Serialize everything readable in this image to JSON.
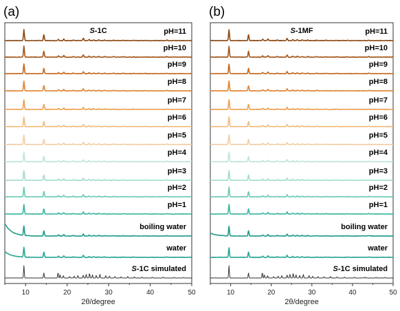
{
  "chart_data": [
    {
      "type": "line",
      "panel": "(a)",
      "title_prefix": "S",
      "title_rest": "-1C",
      "xlabel": "2θ/degree",
      "ylabel": "",
      "xlim": [
        5,
        50
      ],
      "xticks": [
        10,
        20,
        30,
        40,
        50
      ],
      "series": [
        {
          "name": "pH=11",
          "color": "#8c4a14",
          "label_prefix": "",
          "label_rest": "pH=11"
        },
        {
          "name": "pH=10",
          "color": "#a3561a",
          "label_prefix": "",
          "label_rest": "pH=10"
        },
        {
          "name": "pH=9",
          "color": "#c4681f",
          "label_prefix": "",
          "label_rest": "pH=9"
        },
        {
          "name": "pH=8",
          "color": "#df8432",
          "label_prefix": "",
          "label_rest": "pH=8"
        },
        {
          "name": "pH=7",
          "color": "#eea050",
          "label_prefix": "",
          "label_rest": "pH=7"
        },
        {
          "name": "pH=6",
          "color": "#f2bb7e",
          "label_prefix": "",
          "label_rest": "pH=6"
        },
        {
          "name": "pH=5",
          "color": "#f4cda5",
          "label_prefix": "",
          "label_rest": "pH=5"
        },
        {
          "name": "pH=4",
          "color": "#bfe4dc",
          "label_prefix": "",
          "label_rest": "pH=4"
        },
        {
          "name": "pH=3",
          "color": "#a3dbce",
          "label_prefix": "",
          "label_rest": "pH=3"
        },
        {
          "name": "pH=2",
          "color": "#6cc9b7",
          "label_prefix": "",
          "label_rest": "pH=2"
        },
        {
          "name": "pH=1",
          "color": "#3db6a2",
          "label_prefix": "",
          "label_rest": "pH=1"
        },
        {
          "name": "boiling water",
          "color": "#1f9c89",
          "label_prefix": "",
          "label_rest": "boiling water"
        },
        {
          "name": "water",
          "color": "#2aa693",
          "label_prefix": "",
          "label_rest": "water"
        },
        {
          "name": "S-1C simulated",
          "color": "#333333",
          "label_prefix": "S",
          "label_rest": "-1C simulated"
        }
      ]
    },
    {
      "type": "line",
      "panel": "(b)",
      "title_prefix": "S",
      "title_rest": "-1MF",
      "xlabel": "2θ/degree",
      "ylabel": "",
      "xlim": [
        5,
        50
      ],
      "xticks": [
        10,
        20,
        30,
        40,
        50
      ],
      "series": [
        {
          "name": "pH=11",
          "color": "#8c4a14",
          "label_prefix": "",
          "label_rest": "pH=11"
        },
        {
          "name": "pH=10",
          "color": "#a3561a",
          "label_prefix": "",
          "label_rest": "pH=10"
        },
        {
          "name": "pH=9",
          "color": "#c4681f",
          "label_prefix": "",
          "label_rest": "pH=9"
        },
        {
          "name": "pH=8",
          "color": "#df8432",
          "label_prefix": "",
          "label_rest": "pH=8"
        },
        {
          "name": "pH=7",
          "color": "#eea050",
          "label_prefix": "",
          "label_rest": "pH=7"
        },
        {
          "name": "pH=6",
          "color": "#f2bb7e",
          "label_prefix": "",
          "label_rest": "pH=6"
        },
        {
          "name": "pH=5",
          "color": "#f4cda5",
          "label_prefix": "",
          "label_rest": "pH=5"
        },
        {
          "name": "pH=4",
          "color": "#bfe4dc",
          "label_prefix": "",
          "label_rest": "pH=4"
        },
        {
          "name": "pH=3",
          "color": "#a3dbce",
          "label_prefix": "",
          "label_rest": "pH=3"
        },
        {
          "name": "pH=2",
          "color": "#6cc9b7",
          "label_prefix": "",
          "label_rest": "pH=2"
        },
        {
          "name": "pH=1",
          "color": "#3db6a2",
          "label_prefix": "",
          "label_rest": "pH=1"
        },
        {
          "name": "boiling water",
          "color": "#1f9c89",
          "label_prefix": "",
          "label_rest": "boiling water"
        },
        {
          "name": "water",
          "color": "#2aa693",
          "label_prefix": "",
          "label_rest": "water"
        },
        {
          "name": "S-1C simulated",
          "color": "#333333",
          "label_prefix": "S",
          "label_rest": "-1C simulated"
        }
      ]
    }
  ],
  "peaks": [
    {
      "pos": 9.6,
      "h": 1.0
    },
    {
      "pos": 14.4,
      "h": 0.55
    },
    {
      "pos": 17.9,
      "h": 0.12
    },
    {
      "pos": 19.2,
      "h": 0.16
    },
    {
      "pos": 21.5,
      "h": 0.07
    },
    {
      "pos": 23.9,
      "h": 0.22
    },
    {
      "pos": 25.3,
      "h": 0.1
    },
    {
      "pos": 26.4,
      "h": 0.08
    },
    {
      "pos": 27.6,
      "h": 0.07
    },
    {
      "pos": 29.0,
      "h": 0.06
    },
    {
      "pos": 31.2,
      "h": 0.05
    },
    {
      "pos": 33.5,
      "h": 0.04
    },
    {
      "pos": 36.0,
      "h": 0.04
    },
    {
      "pos": 38.8,
      "h": 0.03
    },
    {
      "pos": 44.0,
      "h": 0.05
    }
  ],
  "simulated_peaks": [
    {
      "pos": 9.6,
      "h": 1.0
    },
    {
      "pos": 14.4,
      "h": 0.42
    },
    {
      "pos": 17.8,
      "h": 0.45
    },
    {
      "pos": 18.3,
      "h": 0.25
    },
    {
      "pos": 19.1,
      "h": 0.2
    },
    {
      "pos": 20.6,
      "h": 0.12
    },
    {
      "pos": 21.7,
      "h": 0.15
    },
    {
      "pos": 22.6,
      "h": 0.2
    },
    {
      "pos": 23.9,
      "h": 0.25
    },
    {
      "pos": 24.6,
      "h": 0.3
    },
    {
      "pos": 25.4,
      "h": 0.38
    },
    {
      "pos": 26.1,
      "h": 0.25
    },
    {
      "pos": 27.0,
      "h": 0.22
    },
    {
      "pos": 27.9,
      "h": 0.3
    },
    {
      "pos": 29.3,
      "h": 0.2
    },
    {
      "pos": 30.2,
      "h": 0.15
    },
    {
      "pos": 31.5,
      "h": 0.12
    },
    {
      "pos": 33.0,
      "h": 0.1
    },
    {
      "pos": 34.6,
      "h": 0.12
    },
    {
      "pos": 36.2,
      "h": 0.09
    },
    {
      "pos": 38.0,
      "h": 0.07
    },
    {
      "pos": 40.5,
      "h": 0.06
    },
    {
      "pos": 43.1,
      "h": 0.07
    },
    {
      "pos": 45.8,
      "h": 0.05
    },
    {
      "pos": 48.0,
      "h": 0.05
    }
  ]
}
